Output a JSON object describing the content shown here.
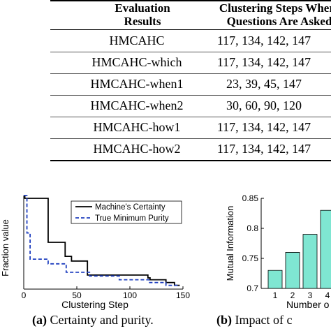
{
  "table": {
    "headers": [
      "Evaluation Results",
      "Clustering Steps Where Questions Are Asked"
    ],
    "header_lines": [
      [
        "Evaluation",
        "Results"
      ],
      [
        "Clustering Steps Where",
        "Questions Are Asked"
      ]
    ],
    "rows": [
      {
        "name": "HMCAHC",
        "steps": "117, 134, 142, 147"
      },
      {
        "name": "HMCAHC-which",
        "steps": "117, 134, 142, 147"
      },
      {
        "name": "HMCAHC-when1",
        "steps": "23, 39, 45, 147"
      },
      {
        "name": "HMCAHC-when2",
        "steps": "30, 60, 90, 120"
      },
      {
        "name": "HMCAHC-how1",
        "steps": "117, 134, 142, 147"
      },
      {
        "name": "HMCAHC-how2",
        "steps": "117, 134, 142, 147"
      }
    ]
  },
  "chart_data": [
    {
      "type": "line",
      "xlabel": "Clustering Step",
      "ylabel": "Fraction value",
      "xlim": [
        0,
        150
      ],
      "ylim": [
        0,
        1
      ],
      "xticks": [
        0,
        50,
        100,
        150
      ],
      "grid": false,
      "legend": "top-right",
      "series": [
        {
          "name": "Machine's Certainty",
          "color": "#000000",
          "style": "solid",
          "x": [
            0,
            1,
            1,
            23,
            23,
            39,
            39,
            45,
            45,
            60,
            60,
            117,
            117,
            119,
            119,
            134,
            134,
            142,
            142,
            147
          ],
          "y": [
            1.0,
            1.0,
            0.97,
            0.97,
            0.5,
            0.5,
            0.35,
            0.35,
            0.3,
            0.3,
            0.15,
            0.15,
            0.12,
            0.12,
            0.1,
            0.1,
            0.07,
            0.07,
            0.04,
            0.04
          ]
        },
        {
          "name": "True Minimum Purity",
          "color": "#1f3fbf",
          "style": "dashed",
          "x": [
            0,
            3,
            3,
            6,
            6,
            23,
            23,
            40,
            40,
            62,
            62,
            90,
            90,
            118,
            118,
            134,
            134,
            147
          ],
          "y": [
            1.0,
            1.0,
            0.6,
            0.6,
            0.32,
            0.32,
            0.27,
            0.27,
            0.18,
            0.18,
            0.14,
            0.14,
            0.1,
            0.1,
            0.07,
            0.07,
            0.04,
            0.04
          ]
        }
      ]
    },
    {
      "type": "bar",
      "ylabel": "Mutual Information",
      "xlabel": "Number o",
      "ylim": [
        0.7,
        0.85
      ],
      "yticks": [
        0.7,
        0.75,
        0.8,
        0.85
      ],
      "categories": [
        "1",
        "2",
        "3",
        "4"
      ],
      "values": [
        0.73,
        0.76,
        0.79,
        0.83
      ],
      "bar_color": "#7fe6d2",
      "grid": false
    }
  ],
  "captions": {
    "a_label": "(a)",
    "a_text": " Certainty and purity.",
    "b_label": "(b)",
    "b_text": " Impact of c"
  }
}
